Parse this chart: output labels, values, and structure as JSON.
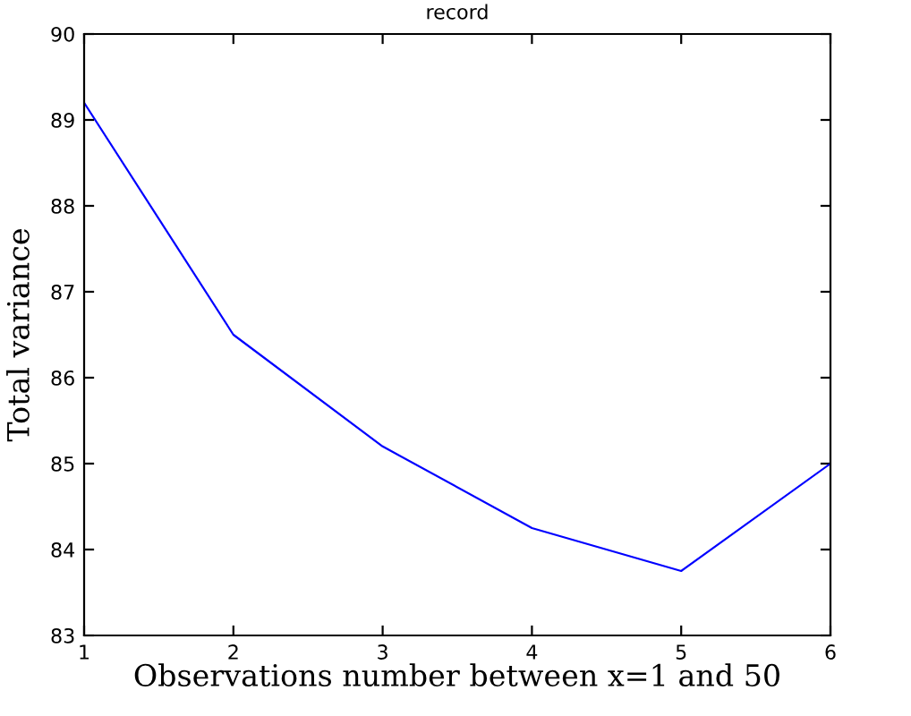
{
  "chart_data": {
    "type": "line",
    "title": "record",
    "xlabel": "Observations number between x=1 and 50",
    "ylabel": "Total variance",
    "x": [
      1,
      2,
      3,
      4,
      5,
      6
    ],
    "series": [
      {
        "color": "#0000ff",
        "values": [
          89.2,
          86.5,
          85.2,
          84.25,
          83.75,
          85.0
        ]
      }
    ],
    "xlim": [
      1,
      6
    ],
    "xticks": [
      1,
      2,
      3,
      4,
      5,
      6
    ],
    "ylim": [
      83,
      90
    ],
    "yticks": [
      83,
      84,
      85,
      86,
      87,
      88,
      89,
      90
    ],
    "grid": false,
    "legend": false,
    "marker": "none",
    "line_style": "solid"
  }
}
